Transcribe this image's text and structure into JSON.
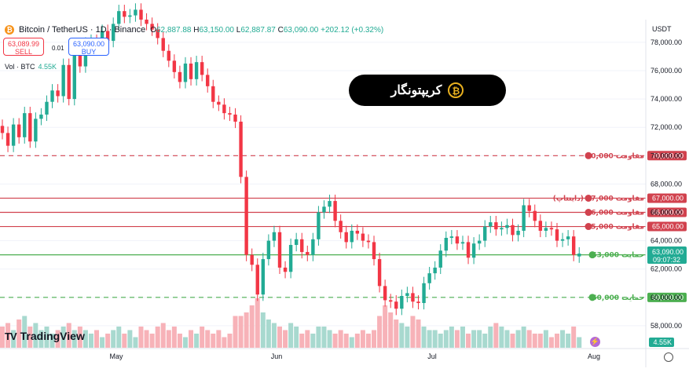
{
  "header": {
    "symbol": "Bitcoin / TetherUS · 1D · Binance",
    "open_label": "O",
    "open": "62,887.88",
    "high_label": "H",
    "high": "63,150.00",
    "low_label": "L",
    "low": "62,887.87",
    "close_label": "C",
    "close": "63,090.00",
    "change": "+202.12 (+0.32%)",
    "sell_price": "63,089.99",
    "sell_label": "SELL",
    "spread": "0.01",
    "buy_price": "63,090.00",
    "buy_label": "BUY",
    "vol_label": "Vol · BTC",
    "vol_value": "4.55K",
    "currency": "USDT"
  },
  "brand": {
    "text": "کریپتونگار",
    "icon": "coin-icon"
  },
  "tradingview_label": "TradingView",
  "colors": {
    "up": "#22ab94",
    "down": "#f23645",
    "vol_up": "#a8d9cf",
    "vol_down": "#f7b2b8",
    "resistance": "#d1424e",
    "support": "#4caf50",
    "axis_text": "#131722"
  },
  "chart_data": {
    "type": "candlestick",
    "title": "",
    "xlabel": "",
    "ylabel": "",
    "ylim": [
      56500,
      79600
    ],
    "x_ticks": [
      "May",
      "Jun",
      "Jul",
      "Aug"
    ],
    "y_ticks": [
      "58,000.00",
      "60,000.00",
      "62,000.00",
      "64,000.00",
      "66,000.00",
      "68,000.00",
      "70,000.00",
      "72,000.00",
      "74,000.00",
      "76,000.00",
      "78,000.00"
    ],
    "y_tick_values": [
      58000,
      60000,
      62000,
      64000,
      66000,
      68000,
      70000,
      72000,
      74000,
      76000,
      78000
    ],
    "closes": [
      71600,
      70700,
      72200,
      71300,
      73000,
      71000,
      72600,
      72900,
      73800,
      74600,
      74200,
      76400,
      74000,
      77400,
      76300,
      77900,
      78100,
      77600,
      78800,
      78100,
      79300,
      80200,
      79800,
      79900,
      80300,
      79600,
      79300,
      78900,
      78300,
      77400,
      76700,
      75900,
      75200,
      76500,
      75400,
      76600,
      75700,
      74900,
      73800,
      73600,
      73000,
      72900,
      72400,
      68500,
      63000,
      62300,
      60200,
      62700,
      64000,
      64600,
      62100,
      61800,
      63700,
      64100,
      63200,
      63000,
      64100,
      66000,
      66400,
      66800,
      65400,
      64600,
      63900,
      64700,
      64500,
      64000,
      63900,
      62700,
      60800,
      59800,
      59700,
      59200,
      60100,
      60300,
      59700,
      59600,
      61000,
      61700,
      62100,
      63300,
      64200,
      64300,
      63800,
      63900,
      62800,
      63800,
      64000,
      65000,
      65300,
      64800,
      64900,
      65100,
      64400,
      64700,
      66500,
      66100,
      65400,
      64700,
      64900,
      64800,
      64000,
      64100,
      64300,
      63000,
      63090
    ],
    "opens": [
      72100,
      71600,
      70700,
      72200,
      71300,
      73000,
      71000,
      72600,
      72900,
      73800,
      74600,
      74200,
      76400,
      74000,
      77400,
      76300,
      77900,
      78100,
      77600,
      78800,
      78100,
      79300,
      80200,
      79800,
      79900,
      80300,
      79600,
      79300,
      78900,
      78300,
      77400,
      76700,
      75900,
      75200,
      76500,
      75400,
      76600,
      75700,
      74900,
      73800,
      73600,
      73000,
      72900,
      72400,
      68500,
      63000,
      62300,
      60200,
      62700,
      64000,
      64600,
      62100,
      61800,
      63700,
      64100,
      63200,
      63000,
      64100,
      66000,
      66400,
      66800,
      65400,
      64600,
      63900,
      64700,
      64500,
      64000,
      63900,
      62700,
      60800,
      59800,
      59700,
      59200,
      60100,
      60300,
      59700,
      59600,
      61000,
      61700,
      62100,
      63300,
      64200,
      64300,
      63800,
      63900,
      62800,
      63800,
      64000,
      65000,
      65300,
      64800,
      64900,
      65100,
      64400,
      64700,
      66500,
      66100,
      65400,
      64700,
      64900,
      64800,
      64000,
      64100,
      64300,
      62888
    ],
    "volumes": [
      0.6,
      0.7,
      0.5,
      0.8,
      0.9,
      0.6,
      0.7,
      0.5,
      0.6,
      0.4,
      0.5,
      0.6,
      0.7,
      0.5,
      0.6,
      0.5,
      0.4,
      0.5,
      0.3,
      0.4,
      0.5,
      0.6,
      0.4,
      0.5,
      0.3,
      0.6,
      0.5,
      0.4,
      0.6,
      0.7,
      0.5,
      0.6,
      0.4,
      0.3,
      0.5,
      0.4,
      0.6,
      0.5,
      0.4,
      0.5,
      0.3,
      0.4,
      0.9,
      0.9,
      1.0,
      1.2,
      1.4,
      1.0,
      0.8,
      0.7,
      0.6,
      0.5,
      0.7,
      0.6,
      0.4,
      0.5,
      0.4,
      0.6,
      0.6,
      0.5,
      0.4,
      0.5,
      0.4,
      0.3,
      0.4,
      0.5,
      0.4,
      0.5,
      0.9,
      1.2,
      1.0,
      0.8,
      0.7,
      0.6,
      0.9,
      0.8,
      0.6,
      0.5,
      0.5,
      0.4,
      0.5,
      0.6,
      0.5,
      0.6,
      0.4,
      0.5,
      0.5,
      0.4,
      0.6,
      0.7,
      0.6,
      0.5,
      0.4,
      0.5,
      0.6,
      0.5,
      0.4,
      0.4,
      0.5,
      0.3,
      0.4,
      0.5,
      0.4,
      0.6,
      0.3
    ],
    "levels": [
      {
        "value": 70000,
        "kind": "resistance",
        "style": "dashed",
        "label": "مقاومت  70,000",
        "axis_label": "70,000.00"
      },
      {
        "value": 67000,
        "kind": "resistance",
        "style": "solid",
        "label": "مقاومت 67,000 (داینتاپ)",
        "axis_label": "67,000.00"
      },
      {
        "value": 66000,
        "kind": "resistance",
        "style": "solid",
        "label": "مقاومت 66,000",
        "axis_label": "66,000.00"
      },
      {
        "value": 65000,
        "kind": "resistance",
        "style": "solid",
        "label": "مقاومت 65,000",
        "axis_label": "65,000.00"
      },
      {
        "value": 63000,
        "kind": "support",
        "style": "solid",
        "label": "حمایت 63,000",
        "axis_label": "63,000.00"
      },
      {
        "value": 60000,
        "kind": "support",
        "style": "dashed",
        "label": "حمایت 60,000",
        "axis_label": "60,000.00"
      }
    ],
    "last_price": {
      "value": 63090,
      "label": "63,090.00",
      "countdown": "09:07:32"
    },
    "volume_badge": "4.55K"
  }
}
